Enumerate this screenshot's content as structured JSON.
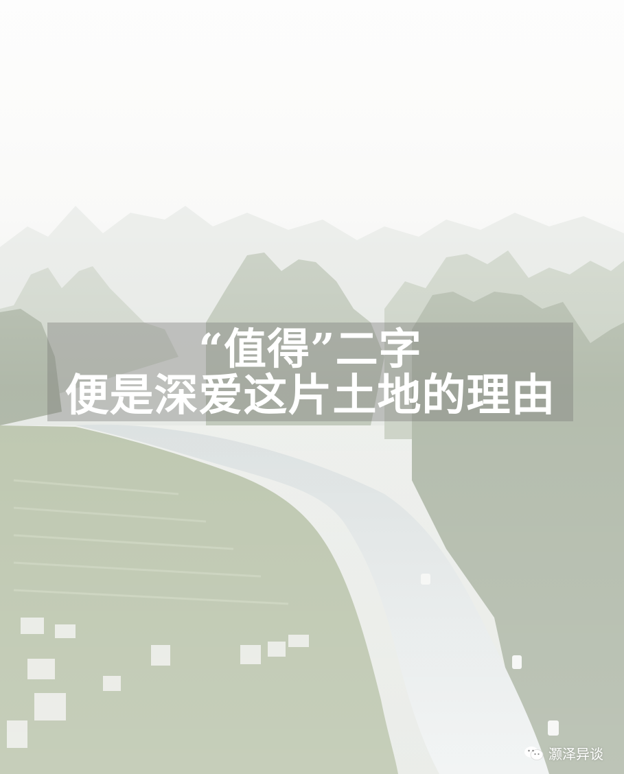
{
  "headline": {
    "line1": "“值得”二字",
    "line2": "便是深爱这片土地的理由"
  },
  "watermark": {
    "icon": "wechat-icon",
    "text": "灏泽异谈"
  },
  "colors": {
    "sky": "#f7f7f5",
    "mountain_far": "#dfe3de",
    "mountain_near": "#a9b3a2",
    "river": "#e3e8e8",
    "fields": "#b8c3a8",
    "banner": "#7a7b77",
    "text": "#ffffff"
  }
}
